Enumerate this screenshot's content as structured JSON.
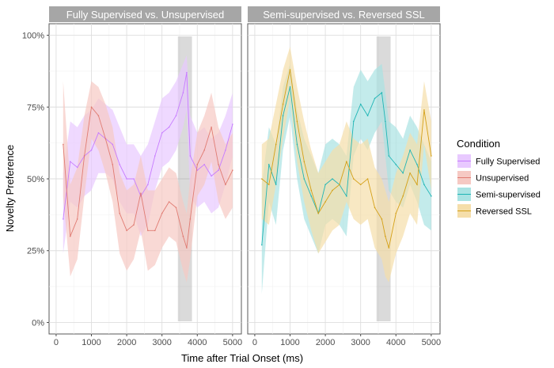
{
  "chart_data": {
    "type": "line",
    "xlabel": "Time after Trial Onset (ms)",
    "ylabel": "Novelty Preference",
    "xlim": [
      -200,
      5250
    ],
    "ylim": [
      -0.04,
      1.04
    ],
    "x_ticks": [
      0,
      1000,
      2000,
      3000,
      4000,
      5000
    ],
    "x_tick_labels": [
      "0",
      "1000",
      "2000",
      "3000",
      "4000",
      "5000"
    ],
    "y_ticks": [
      0,
      0.25,
      0.5,
      0.75,
      1.0
    ],
    "y_tick_labels": [
      "0%",
      "25%",
      "50%",
      "75%",
      "100%"
    ],
    "highlight_window": [
      3450,
      3850
    ],
    "legend": {
      "title": "Condition",
      "entries": [
        {
          "name": "Fully Supervised",
          "line": "#c77cff",
          "fill": "#e8c9ff"
        },
        {
          "name": "Unsupervised",
          "line": "#e07b72",
          "fill": "#f6c9c3"
        },
        {
          "name": "Semi-supervised",
          "line": "#1fb5b5",
          "fill": "#a9e3e3"
        },
        {
          "name": "Reversed SSL",
          "line": "#d4a017",
          "fill": "#f5deaa"
        }
      ]
    },
    "panels": [
      {
        "title": "Fully Supervised vs. Unsupervised",
        "series": [
          {
            "name": "Fully Supervised",
            "x": [
              200,
              400,
              600,
              800,
              1000,
              1200,
              1400,
              1600,
              1800,
              2000,
              2200,
              2400,
              2600,
              2800,
              3000,
              3200,
              3400,
              3600,
              3700,
              3800,
              4000,
              4200,
              4400,
              4600,
              4800,
              5000
            ],
            "y": [
              0.36,
              0.56,
              0.54,
              0.58,
              0.6,
              0.66,
              0.64,
              0.62,
              0.55,
              0.5,
              0.5,
              0.44,
              0.48,
              0.58,
              0.66,
              0.68,
              0.72,
              0.8,
              0.87,
              0.58,
              0.53,
              0.55,
              0.51,
              0.53,
              0.6,
              0.69
            ],
            "upper": [
              0.52,
              0.7,
              0.68,
              0.72,
              0.74,
              0.78,
              0.76,
              0.74,
              0.68,
              0.62,
              0.62,
              0.58,
              0.62,
              0.7,
              0.78,
              0.8,
              0.84,
              0.9,
              0.93,
              0.72,
              0.66,
              0.68,
              0.64,
              0.66,
              0.72,
              0.8
            ],
            "lower": [
              0.24,
              0.42,
              0.4,
              0.44,
              0.46,
              0.52,
              0.52,
              0.5,
              0.42,
              0.38,
              0.38,
              0.3,
              0.34,
              0.46,
              0.54,
              0.56,
              0.6,
              0.68,
              0.74,
              0.44,
              0.4,
              0.42,
              0.38,
              0.4,
              0.48,
              0.58
            ]
          },
          {
            "name": "Unsupervised",
            "x": [
              200,
              400,
              600,
              800,
              1000,
              1200,
              1400,
              1600,
              1800,
              2000,
              2200,
              2400,
              2600,
              2800,
              3000,
              3200,
              3400,
              3600,
              3700,
              3800,
              4000,
              4200,
              4400,
              4600,
              4800,
              5000
            ],
            "y": [
              0.62,
              0.3,
              0.36,
              0.58,
              0.75,
              0.72,
              0.64,
              0.55,
              0.38,
              0.32,
              0.34,
              0.45,
              0.32,
              0.32,
              0.38,
              0.42,
              0.4,
              0.3,
              0.26,
              0.36,
              0.55,
              0.6,
              0.68,
              0.55,
              0.48,
              0.53
            ],
            "upper": [
              0.84,
              0.48,
              0.54,
              0.72,
              0.84,
              0.82,
              0.76,
              0.68,
              0.52,
              0.46,
              0.48,
              0.58,
              0.46,
              0.46,
              0.5,
              0.54,
              0.52,
              0.42,
              0.38,
              0.5,
              0.66,
              0.72,
              0.8,
              0.68,
              0.62,
              0.66
            ],
            "lower": [
              0.44,
              0.16,
              0.22,
              0.44,
              0.64,
              0.6,
              0.52,
              0.42,
              0.24,
              0.18,
              0.22,
              0.32,
              0.18,
              0.2,
              0.26,
              0.3,
              0.28,
              0.18,
              0.14,
              0.22,
              0.44,
              0.48,
              0.56,
              0.42,
              0.36,
              0.4
            ]
          }
        ]
      },
      {
        "title": "Semi-supervised vs. Reversed SSL",
        "series": [
          {
            "name": "Semi-supervised",
            "x": [
              200,
              400,
              600,
              800,
              1000,
              1200,
              1400,
              1600,
              1800,
              2000,
              2200,
              2400,
              2600,
              2800,
              3000,
              3200,
              3400,
              3600,
              3700,
              3800,
              4000,
              4200,
              4400,
              4600,
              4800,
              5000
            ],
            "y": [
              0.27,
              0.55,
              0.48,
              0.72,
              0.82,
              0.62,
              0.5,
              0.44,
              0.38,
              0.48,
              0.5,
              0.48,
              0.44,
              0.7,
              0.76,
              0.72,
              0.78,
              0.8,
              0.7,
              0.58,
              0.55,
              0.52,
              0.6,
              0.55,
              0.48,
              0.44
            ],
            "upper": [
              0.48,
              0.68,
              0.62,
              0.82,
              0.9,
              0.74,
              0.64,
              0.58,
              0.52,
              0.62,
              0.64,
              0.62,
              0.58,
              0.82,
              0.88,
              0.84,
              0.88,
              0.9,
              0.8,
              0.7,
              0.68,
              0.64,
              0.72,
              0.68,
              0.62,
              0.56
            ],
            "lower": [
              0.1,
              0.42,
              0.34,
              0.6,
              0.72,
              0.5,
              0.36,
              0.3,
              0.24,
              0.34,
              0.36,
              0.34,
              0.3,
              0.58,
              0.64,
              0.6,
              0.66,
              0.7,
              0.58,
              0.46,
              0.42,
              0.4,
              0.48,
              0.42,
              0.34,
              0.32
            ]
          },
          {
            "name": "Reversed SSL",
            "x": [
              200,
              400,
              600,
              800,
              1000,
              1200,
              1400,
              1600,
              1800,
              2000,
              2200,
              2400,
              2600,
              2800,
              3000,
              3200,
              3400,
              3600,
              3700,
              3800,
              4000,
              4200,
              4400,
              4600,
              4800,
              5000
            ],
            "y": [
              0.5,
              0.48,
              0.62,
              0.76,
              0.88,
              0.7,
              0.56,
              0.46,
              0.38,
              0.42,
              0.46,
              0.48,
              0.56,
              0.5,
              0.48,
              0.5,
              0.4,
              0.36,
              0.3,
              0.26,
              0.38,
              0.44,
              0.52,
              0.48,
              0.74,
              0.58
            ],
            "upper": [
              0.62,
              0.64,
              0.76,
              0.88,
              0.96,
              0.82,
              0.7,
              0.6,
              0.52,
              0.56,
              0.6,
              0.62,
              0.7,
              0.64,
              0.62,
              0.64,
              0.54,
              0.5,
              0.46,
              0.42,
              0.52,
              0.58,
              0.66,
              0.62,
              0.84,
              0.7
            ],
            "lower": [
              0.36,
              0.34,
              0.48,
              0.64,
              0.78,
              0.56,
              0.42,
              0.32,
              0.24,
              0.28,
              0.32,
              0.34,
              0.42,
              0.36,
              0.34,
              0.36,
              0.26,
              0.22,
              0.16,
              0.14,
              0.24,
              0.3,
              0.38,
              0.34,
              0.62,
              0.46
            ]
          }
        ]
      }
    ]
  }
}
